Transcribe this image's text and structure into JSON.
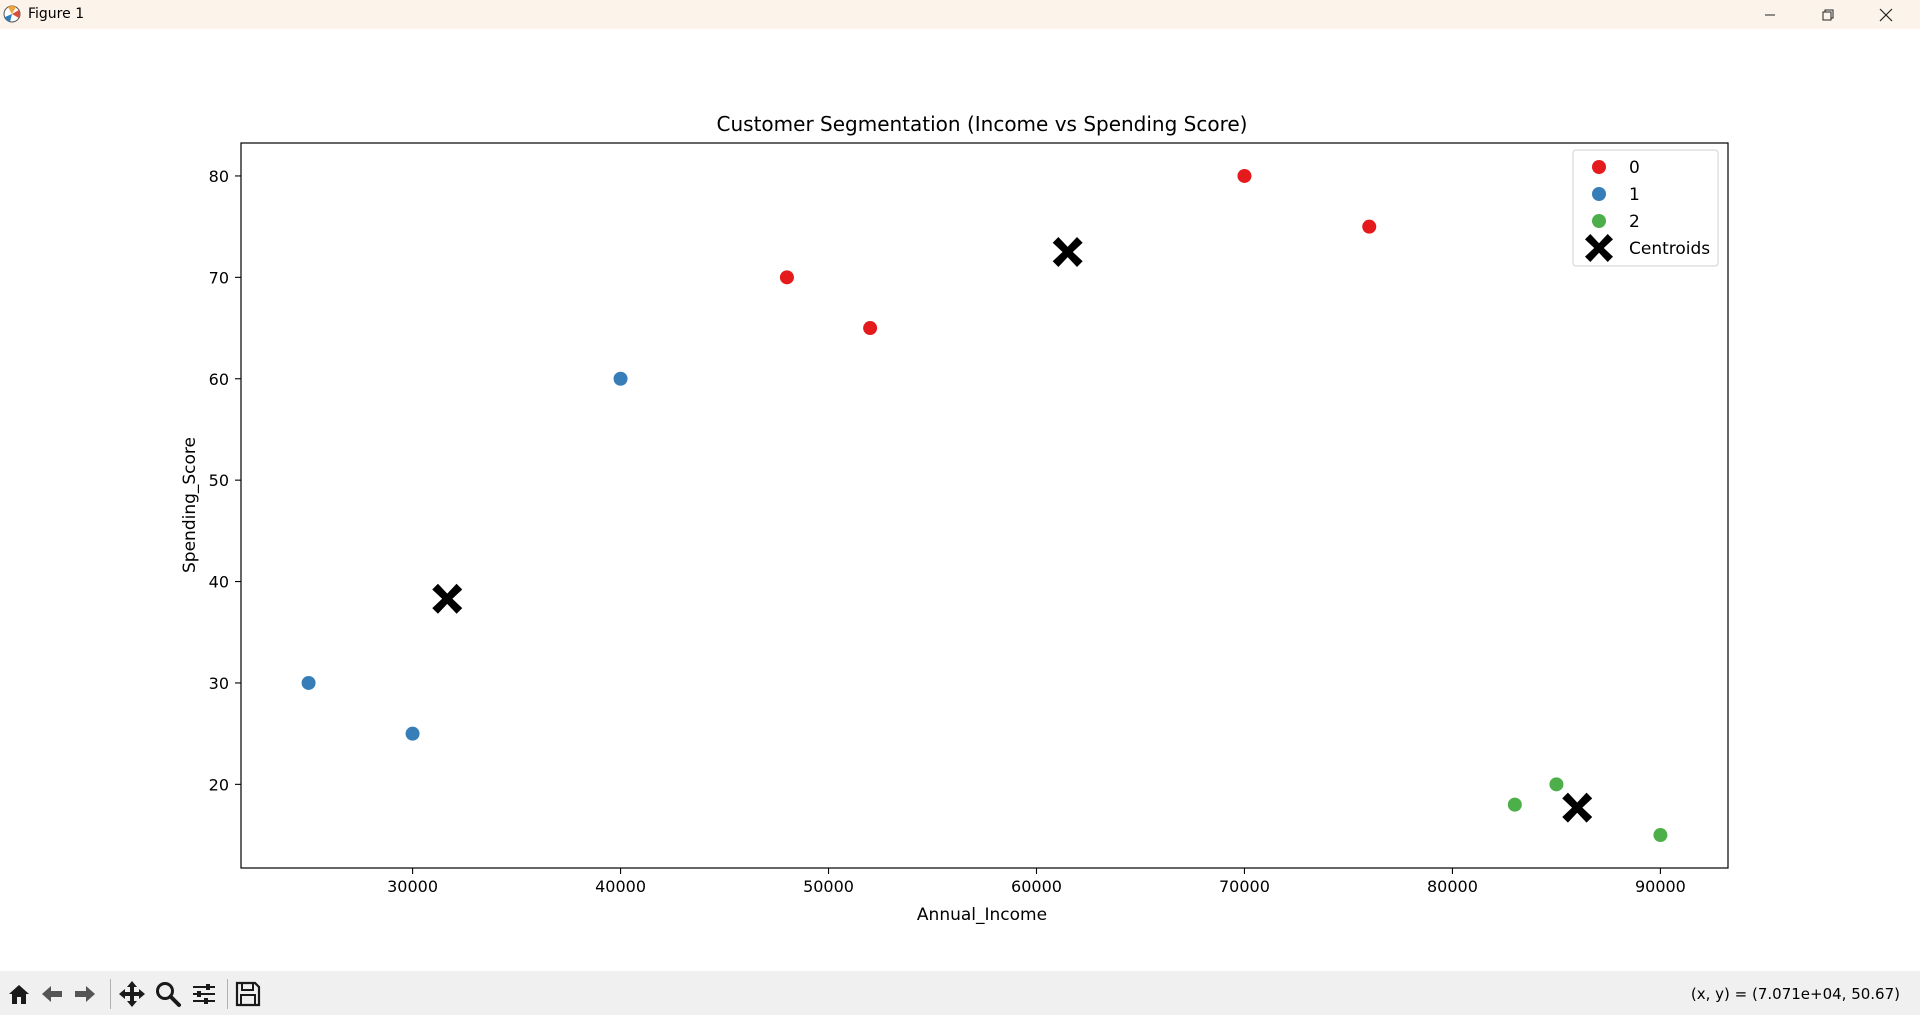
{
  "window": {
    "title": "Figure 1",
    "icons": {
      "app": "matplotlib-icon",
      "minimize": "minimize-icon",
      "maximize": "restore-icon",
      "close": "close-icon"
    }
  },
  "toolbar": {
    "buttons": [
      {
        "name": "home-icon"
      },
      {
        "name": "back-arrow-icon"
      },
      {
        "name": "forward-arrow-icon"
      },
      {
        "name": "pan-icon"
      },
      {
        "name": "zoom-icon"
      },
      {
        "name": "configure-subplots-icon"
      },
      {
        "name": "save-icon"
      }
    ],
    "coords_text": "(x, y) = (7.071e+04, 50.67)"
  },
  "chart_data": {
    "type": "scatter",
    "title": "Customer Segmentation (Income vs Spending Score)",
    "xlabel": "Annual_Income",
    "ylabel": "Spending_Score",
    "xlim": [
      21750,
      93250
    ],
    "ylim": [
      11.75,
      83.25
    ],
    "xticks": [
      30000,
      40000,
      50000,
      60000,
      70000,
      80000,
      90000
    ],
    "yticks": [
      20,
      30,
      40,
      50,
      60,
      70,
      80
    ],
    "grid": false,
    "legend_position": "top-right",
    "series": [
      {
        "name": "0",
        "color": "#e41a1c",
        "marker": "circle",
        "points": [
          [
            48000,
            70
          ],
          [
            52000,
            65
          ],
          [
            70000,
            80
          ],
          [
            76000,
            75
          ]
        ]
      },
      {
        "name": "1",
        "color": "#377eb8",
        "marker": "circle",
        "points": [
          [
            25000,
            30
          ],
          [
            30000,
            25
          ],
          [
            40000,
            60
          ]
        ]
      },
      {
        "name": "2",
        "color": "#4daf4a",
        "marker": "circle",
        "points": [
          [
            83000,
            18
          ],
          [
            85000,
            20
          ],
          [
            90000,
            15
          ]
        ]
      },
      {
        "name": "Centroids",
        "color": "#000000",
        "marker": "x",
        "points": [
          [
            61500,
            72.5
          ],
          [
            31667,
            38.3
          ],
          [
            86000,
            17.7
          ]
        ]
      }
    ]
  }
}
